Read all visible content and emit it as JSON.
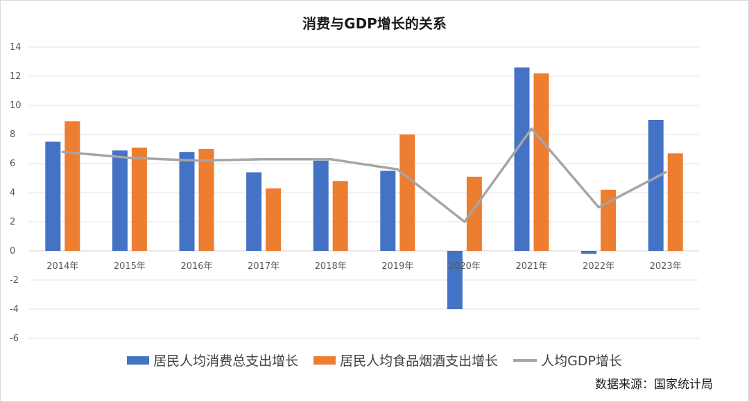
{
  "chart_data": {
    "type": "bar",
    "title": "消费与GDP增长的关系",
    "categories": [
      "2014年",
      "2015年",
      "2016年",
      "2017年",
      "2018年",
      "2019年",
      "2020年",
      "2021年",
      "2022年",
      "2023年"
    ],
    "series": [
      {
        "name": "居民人均消费总支出增长",
        "type": "bar",
        "color": "#4472C4",
        "values": [
          7.5,
          6.9,
          6.8,
          5.4,
          6.2,
          5.5,
          -4.0,
          12.6,
          -0.2,
          9.0
        ]
      },
      {
        "name": "居民人均食品烟酒支出增长",
        "type": "bar",
        "color": "#ED7D31",
        "values": [
          8.9,
          7.1,
          7.0,
          4.3,
          4.8,
          8.0,
          5.1,
          12.2,
          4.2,
          6.7
        ]
      },
      {
        "name": "人均GDP增长",
        "type": "line",
        "color": "#A5A5A5",
        "values": [
          6.8,
          6.4,
          6.2,
          6.3,
          6.3,
          5.6,
          2.0,
          8.4,
          3.0,
          5.4
        ]
      }
    ],
    "ylim": [
      -6,
      14
    ],
    "yticks": [
      14,
      12,
      10,
      8,
      6,
      4,
      2,
      0,
      -2,
      -4,
      -6
    ],
    "grid": true,
    "legend_position": "bottom",
    "source": "数据来源：国家统计局"
  }
}
